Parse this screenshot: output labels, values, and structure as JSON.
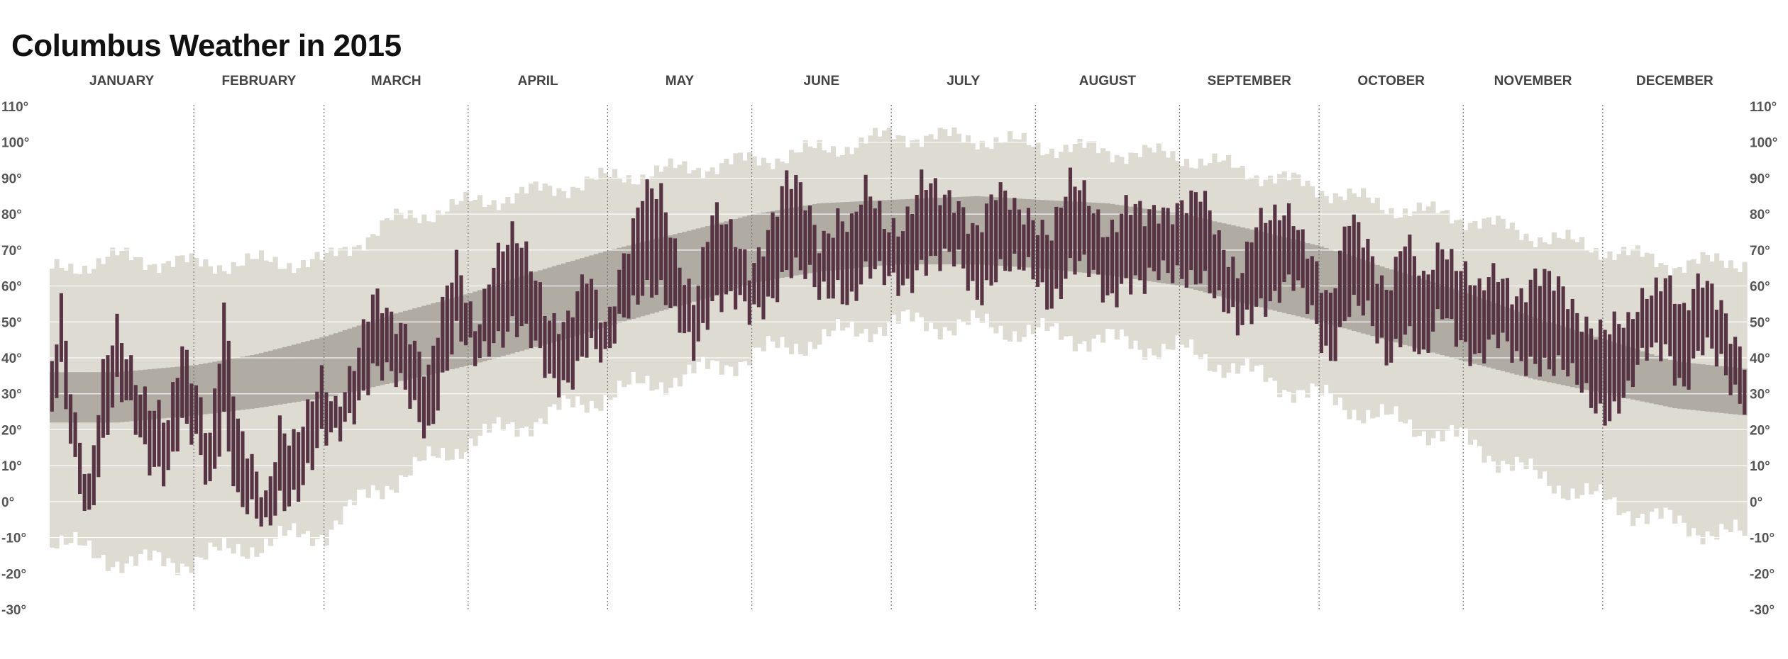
{
  "title": "Columbus Weather in 2015",
  "colors": {
    "record_band": "#dedbd3",
    "normal_band": "#b0aba3",
    "actual_bar": "#573444",
    "grid_line": "#ffffff",
    "month_divider": "#777777"
  },
  "chart_data": {
    "type": "bar",
    "title": "Columbus Weather in 2015",
    "x_unit": "day of year 2015",
    "y_unit": "degrees Fahrenheit",
    "ylim": [
      -30,
      110
    ],
    "y_ticks": [
      110,
      100,
      90,
      80,
      70,
      60,
      50,
      40,
      30,
      20,
      10,
      0,
      -10,
      -20,
      -30
    ],
    "y_tick_labels": [
      "110°",
      "100°",
      "90°",
      "80°",
      "70°",
      "60°",
      "50°",
      "40°",
      "30°",
      "20°",
      "10°",
      "0°",
      "-10°",
      "-20°",
      "-30°"
    ],
    "months": [
      "JANUARY",
      "FEBRUARY",
      "MARCH",
      "APRIL",
      "MAY",
      "JUNE",
      "JULY",
      "AUGUST",
      "SEPTEMBER",
      "OCTOBER",
      "NOVEMBER",
      "DECEMBER"
    ],
    "month_days": [
      31,
      28,
      31,
      30,
      31,
      30,
      31,
      31,
      30,
      31,
      30,
      31
    ],
    "record_high_anchors": [
      [
        1,
        64
      ],
      [
        15,
        68
      ],
      [
        32,
        66
      ],
      [
        60,
        67
      ],
      [
        74,
        78
      ],
      [
        91,
        83
      ],
      [
        121,
        90
      ],
      [
        152,
        95
      ],
      [
        172,
        99
      ],
      [
        182,
        102
      ],
      [
        200,
        101
      ],
      [
        213,
        99
      ],
      [
        244,
        96
      ],
      [
        258,
        92
      ],
      [
        274,
        87
      ],
      [
        288,
        82
      ],
      [
        305,
        79
      ],
      [
        320,
        74
      ],
      [
        335,
        70
      ],
      [
        350,
        66
      ],
      [
        365,
        67
      ]
    ],
    "record_low_anchors": [
      [
        1,
        -10
      ],
      [
        10,
        -15
      ],
      [
        20,
        -17
      ],
      [
        32,
        -16
      ],
      [
        45,
        -12
      ],
      [
        60,
        -8
      ],
      [
        70,
        3
      ],
      [
        91,
        17
      ],
      [
        105,
        23
      ],
      [
        121,
        30
      ],
      [
        140,
        36
      ],
      [
        152,
        41
      ],
      [
        172,
        47
      ],
      [
        182,
        50
      ],
      [
        200,
        49
      ],
      [
        213,
        47
      ],
      [
        228,
        45
      ],
      [
        244,
        42
      ],
      [
        258,
        36
      ],
      [
        274,
        29
      ],
      [
        288,
        23
      ],
      [
        305,
        17
      ],
      [
        320,
        7
      ],
      [
        335,
        0
      ],
      [
        350,
        -6
      ],
      [
        365,
        -10
      ]
    ],
    "normal_high_anchors": [
      [
        1,
        36
      ],
      [
        15,
        36
      ],
      [
        32,
        38
      ],
      [
        45,
        41
      ],
      [
        60,
        46
      ],
      [
        74,
        52
      ],
      [
        91,
        58
      ],
      [
        105,
        64
      ],
      [
        121,
        70
      ],
      [
        140,
        76
      ],
      [
        152,
        80
      ],
      [
        166,
        83
      ],
      [
        182,
        84
      ],
      [
        200,
        85
      ],
      [
        213,
        84
      ],
      [
        228,
        83
      ],
      [
        244,
        80
      ],
      [
        258,
        76
      ],
      [
        274,
        71
      ],
      [
        288,
        65
      ],
      [
        305,
        58
      ],
      [
        320,
        51
      ],
      [
        335,
        45
      ],
      [
        350,
        39
      ],
      [
        365,
        37
      ]
    ],
    "normal_low_anchors": [
      [
        1,
        22
      ],
      [
        15,
        22
      ],
      [
        32,
        24
      ],
      [
        45,
        26
      ],
      [
        60,
        29
      ],
      [
        74,
        33
      ],
      [
        91,
        38
      ],
      [
        105,
        43
      ],
      [
        121,
        49
      ],
      [
        140,
        56
      ],
      [
        152,
        61
      ],
      [
        166,
        64
      ],
      [
        182,
        66
      ],
      [
        200,
        66
      ],
      [
        213,
        65
      ],
      [
        228,
        63
      ],
      [
        244,
        60
      ],
      [
        258,
        55
      ],
      [
        274,
        50
      ],
      [
        288,
        45
      ],
      [
        305,
        39
      ],
      [
        320,
        34
      ],
      [
        335,
        30
      ],
      [
        350,
        26
      ],
      [
        365,
        24
      ]
    ],
    "actual_high_anchors": [
      [
        1,
        37
      ],
      [
        3,
        58
      ],
      [
        6,
        26
      ],
      [
        9,
        5
      ],
      [
        12,
        33
      ],
      [
        15,
        47
      ],
      [
        18,
        40
      ],
      [
        22,
        30
      ],
      [
        26,
        20
      ],
      [
        29,
        40
      ],
      [
        32,
        33
      ],
      [
        35,
        22
      ],
      [
        38,
        55
      ],
      [
        41,
        18
      ],
      [
        44,
        8
      ],
      [
        47,
        2
      ],
      [
        50,
        25
      ],
      [
        53,
        18
      ],
      [
        56,
        22
      ],
      [
        59,
        32
      ],
      [
        62,
        28
      ],
      [
        66,
        42
      ],
      [
        70,
        55
      ],
      [
        74,
        48
      ],
      [
        78,
        50
      ],
      [
        82,
        38
      ],
      [
        85,
        52
      ],
      [
        88,
        64
      ],
      [
        92,
        50
      ],
      [
        96,
        70
      ],
      [
        100,
        72
      ],
      [
        104,
        64
      ],
      [
        108,
        54
      ],
      [
        112,
        52
      ],
      [
        116,
        60
      ],
      [
        120,
        48
      ],
      [
        124,
        72
      ],
      [
        128,
        86
      ],
      [
        132,
        82
      ],
      [
        135,
        70
      ],
      [
        139,
        60
      ],
      [
        143,
        80
      ],
      [
        147,
        72
      ],
      [
        151,
        66
      ],
      [
        155,
        78
      ],
      [
        159,
        88
      ],
      [
        162,
        84
      ],
      [
        166,
        74
      ],
      [
        170,
        82
      ],
      [
        173,
        76
      ],
      [
        176,
        84
      ],
      [
        180,
        78
      ],
      [
        184,
        80
      ],
      [
        188,
        88
      ],
      [
        192,
        82
      ],
      [
        196,
        85
      ],
      [
        200,
        78
      ],
      [
        204,
        84
      ],
      [
        208,
        80
      ],
      [
        212,
        82
      ],
      [
        216,
        76
      ],
      [
        220,
        86
      ],
      [
        224,
        84
      ],
      [
        228,
        78
      ],
      [
        232,
        82
      ],
      [
        236,
        76
      ],
      [
        240,
        82
      ],
      [
        244,
        86
      ],
      [
        248,
        84
      ],
      [
        252,
        70
      ],
      [
        256,
        66
      ],
      [
        260,
        80
      ],
      [
        264,
        76
      ],
      [
        268,
        78
      ],
      [
        272,
        72
      ],
      [
        276,
        56
      ],
      [
        280,
        76
      ],
      [
        284,
        72
      ],
      [
        288,
        62
      ],
      [
        292,
        72
      ],
      [
        296,
        58
      ],
      [
        300,
        74
      ],
      [
        304,
        68
      ],
      [
        308,
        56
      ],
      [
        312,
        62
      ],
      [
        316,
        60
      ],
      [
        320,
        64
      ],
      [
        324,
        58
      ],
      [
        328,
        54
      ],
      [
        332,
        52
      ],
      [
        336,
        48
      ],
      [
        340,
        46
      ],
      [
        344,
        60
      ],
      [
        348,
        66
      ],
      [
        352,
        50
      ],
      [
        356,
        60
      ],
      [
        360,
        58
      ],
      [
        365,
        40
      ]
    ],
    "actual_low_anchors": [
      [
        1,
        22
      ],
      [
        3,
        34
      ],
      [
        6,
        12
      ],
      [
        9,
        -2
      ],
      [
        12,
        14
      ],
      [
        15,
        28
      ],
      [
        18,
        24
      ],
      [
        22,
        14
      ],
      [
        26,
        8
      ],
      [
        29,
        18
      ],
      [
        32,
        14
      ],
      [
        35,
        5
      ],
      [
        38,
        26
      ],
      [
        41,
        0
      ],
      [
        44,
        -6
      ],
      [
        47,
        -10
      ],
      [
        50,
        2
      ],
      [
        53,
        4
      ],
      [
        56,
        8
      ],
      [
        59,
        14
      ],
      [
        62,
        16
      ],
      [
        66,
        28
      ],
      [
        70,
        38
      ],
      [
        74,
        32
      ],
      [
        78,
        28
      ],
      [
        82,
        22
      ],
      [
        85,
        34
      ],
      [
        88,
        44
      ],
      [
        92,
        38
      ],
      [
        96,
        48
      ],
      [
        100,
        50
      ],
      [
        104,
        42
      ],
      [
        108,
        34
      ],
      [
        112,
        36
      ],
      [
        116,
        42
      ],
      [
        120,
        36
      ],
      [
        124,
        54
      ],
      [
        128,
        62
      ],
      [
        132,
        56
      ],
      [
        135,
        48
      ],
      [
        139,
        44
      ],
      [
        143,
        58
      ],
      [
        147,
        54
      ],
      [
        151,
        50
      ],
      [
        155,
        58
      ],
      [
        159,
        66
      ],
      [
        162,
        62
      ],
      [
        166,
        56
      ],
      [
        170,
        62
      ],
      [
        173,
        58
      ],
      [
        176,
        62
      ],
      [
        180,
        60
      ],
      [
        184,
        62
      ],
      [
        188,
        68
      ],
      [
        192,
        64
      ],
      [
        196,
        66
      ],
      [
        200,
        60
      ],
      [
        204,
        64
      ],
      [
        208,
        62
      ],
      [
        212,
        64
      ],
      [
        216,
        58
      ],
      [
        220,
        64
      ],
      [
        224,
        62
      ],
      [
        228,
        58
      ],
      [
        232,
        64
      ],
      [
        236,
        58
      ],
      [
        240,
        62
      ],
      [
        244,
        66
      ],
      [
        248,
        64
      ],
      [
        252,
        52
      ],
      [
        256,
        48
      ],
      [
        260,
        58
      ],
      [
        264,
        56
      ],
      [
        268,
        58
      ],
      [
        272,
        54
      ],
      [
        276,
        42
      ],
      [
        280,
        52
      ],
      [
        284,
        50
      ],
      [
        288,
        42
      ],
      [
        292,
        50
      ],
      [
        296,
        36
      ],
      [
        300,
        52
      ],
      [
        304,
        48
      ],
      [
        308,
        40
      ],
      [
        312,
        42
      ],
      [
        316,
        40
      ],
      [
        320,
        42
      ],
      [
        324,
        36
      ],
      [
        328,
        32
      ],
      [
        332,
        30
      ],
      [
        336,
        26
      ],
      [
        340,
        28
      ],
      [
        344,
        40
      ],
      [
        348,
        46
      ],
      [
        352,
        32
      ],
      [
        356,
        40
      ],
      [
        360,
        38
      ],
      [
        365,
        30
      ]
    ]
  }
}
